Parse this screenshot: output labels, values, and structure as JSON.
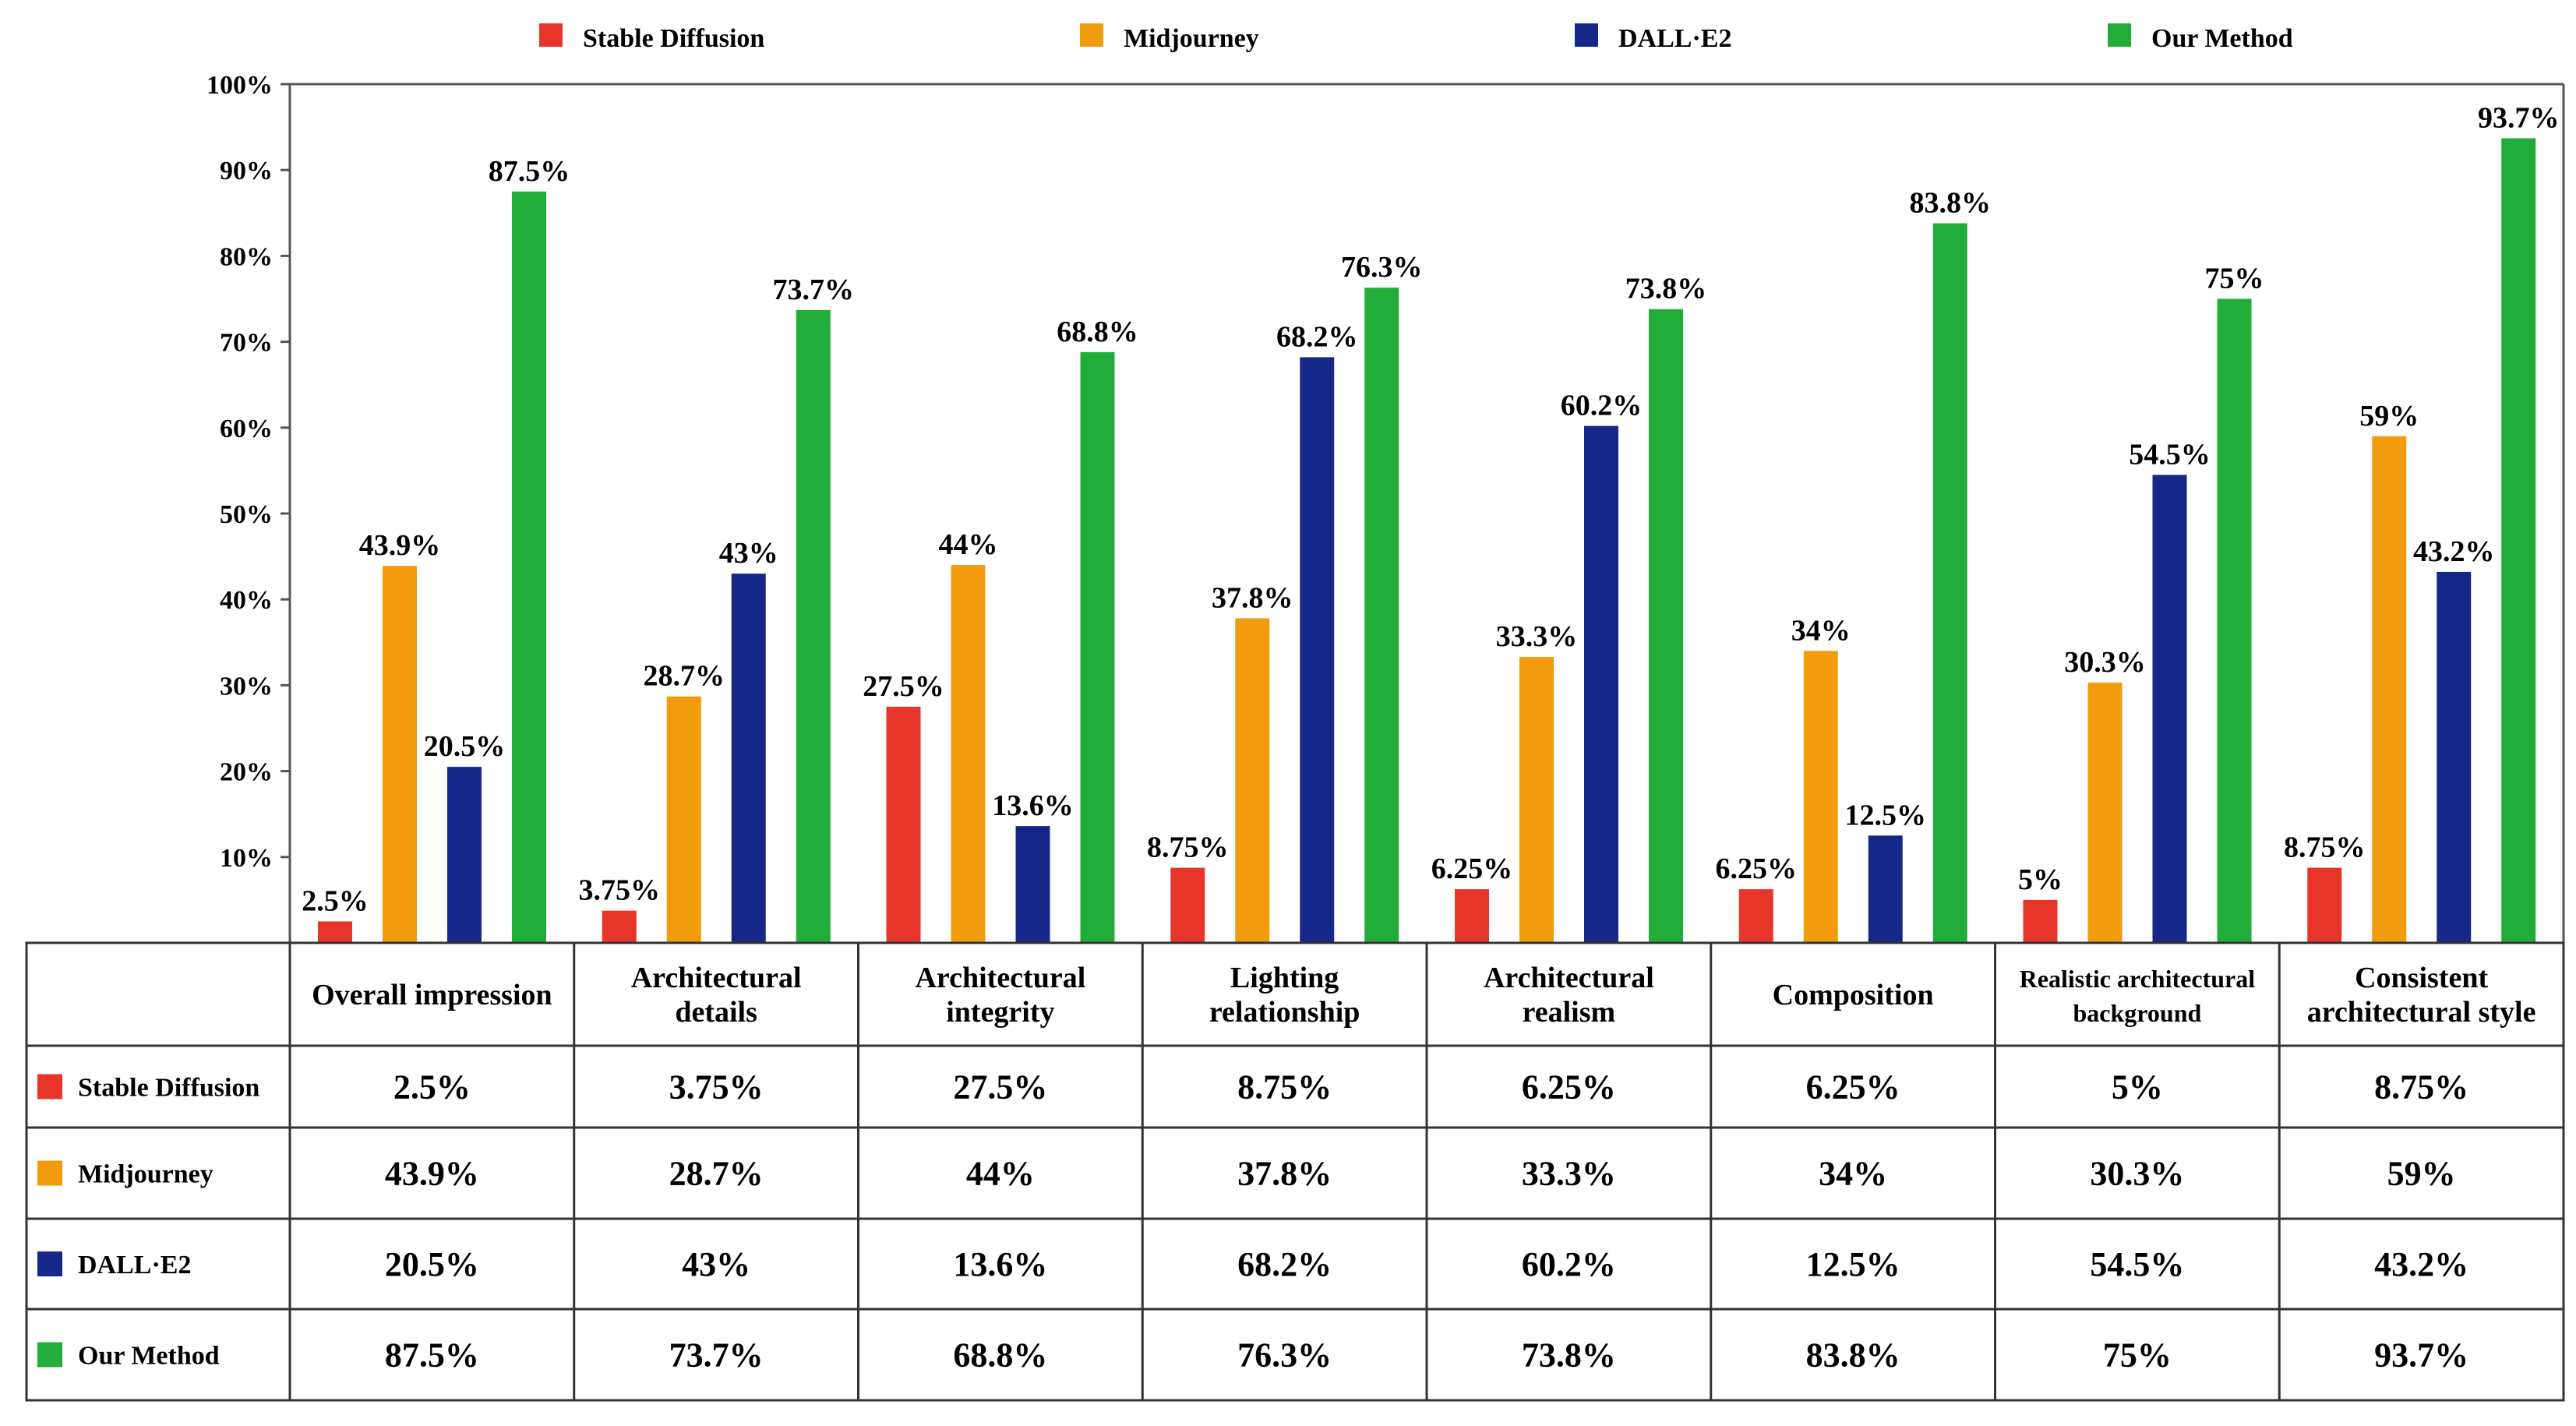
{
  "chart_data": {
    "type": "bar",
    "title": "",
    "xlabel": "",
    "ylabel": "",
    "ylim": [
      0,
      100
    ],
    "yticks": [
      "10%",
      "20%",
      "30%",
      "40%",
      "50%",
      "60%",
      "70%",
      "80%",
      "90%",
      "100%"
    ],
    "legend_position": "top",
    "grid": false,
    "categories": [
      {
        "label_lines": [
          "Overall impression"
        ]
      },
      {
        "label_lines": [
          "Architectural",
          "details"
        ]
      },
      {
        "label_lines": [
          "Architectural",
          "integrity"
        ]
      },
      {
        "label_lines": [
          "Lighting",
          "relationship"
        ]
      },
      {
        "label_lines": [
          "Architectural",
          "realism"
        ]
      },
      {
        "label_lines": [
          "Composition"
        ]
      },
      {
        "label_lines": [
          "Realistic architectural",
          "background"
        ]
      },
      {
        "label_lines": [
          "Consistent",
          "architectural style"
        ]
      }
    ],
    "series": [
      {
        "name": "Stable Diffusion",
        "color": "#e8352a",
        "values": [
          2.5,
          3.75,
          27.5,
          8.75,
          6.25,
          6.25,
          5,
          8.75
        ],
        "labels": [
          "2.5%",
          "3.75%",
          "27.5%",
          "8.75%",
          "6.25%",
          "6.25%",
          "5%",
          "8.75%"
        ]
      },
      {
        "name": "Midjourney",
        "color": "#f29b0c",
        "values": [
          43.9,
          28.7,
          44,
          37.8,
          33.3,
          34,
          30.3,
          59
        ],
        "labels": [
          "43.9%",
          "28.7%",
          "44%",
          "37.8%",
          "33.3%",
          "34%",
          "30.3%",
          "59%"
        ]
      },
      {
        "name": "DALL·E2",
        "color": "#16278a",
        "values": [
          20.5,
          43,
          13.6,
          68.2,
          60.2,
          12.5,
          54.5,
          43.2
        ],
        "labels": [
          "20.5%",
          "43%",
          "13.6%",
          "68.2%",
          "60.2%",
          "12.5%",
          "54.5%",
          "43.2%"
        ]
      },
      {
        "name": "Our Method",
        "color": "#22ad3a",
        "values": [
          87.5,
          73.7,
          68.8,
          76.3,
          73.8,
          83.8,
          75,
          93.7
        ],
        "labels": [
          "87.5%",
          "73.7%",
          "68.8%",
          "76.3%",
          "73.8%",
          "83.8%",
          "75%",
          "93.7%"
        ]
      }
    ]
  }
}
